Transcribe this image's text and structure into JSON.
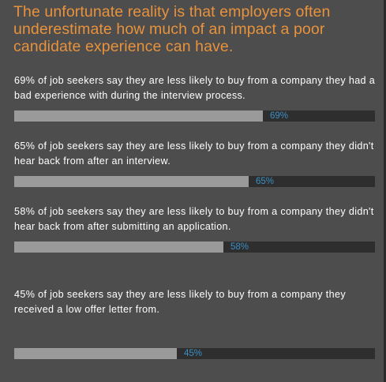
{
  "headline": "The unfortunate reality is that employers often underestimate how much of an impact a poor candidate experience can have.",
  "colors": {
    "background": "#4d4d4e",
    "headline": "#e8923c",
    "bar_fill": "#9a9a9b",
    "bar_track": "#2e2e2f",
    "value_label": "#3a8fc4"
  },
  "chart_data": {
    "type": "bar",
    "orientation": "horizontal",
    "title": "The unfortunate reality is that employers often underestimate how much of an impact a poor candidate experience can have.",
    "xlim": [
      0,
      100
    ],
    "unit": "%",
    "grid": false,
    "categories": [
      "69% of job seekers say they are less likely to buy from a company they had a bad experience with during the interview process.",
      "65% of job seekers say they are less likely to buy from a company they didn't hear back from after an interview.",
      "58% of job seekers say they are less likely to buy from a company they didn't hear back from after submitting an application.",
      "45% of job seekers say they are less likely to buy from a company they received a low offer letter from."
    ],
    "values": [
      69,
      65,
      58,
      45
    ],
    "value_labels": [
      "69%",
      "65%",
      "58%",
      "45%"
    ]
  }
}
